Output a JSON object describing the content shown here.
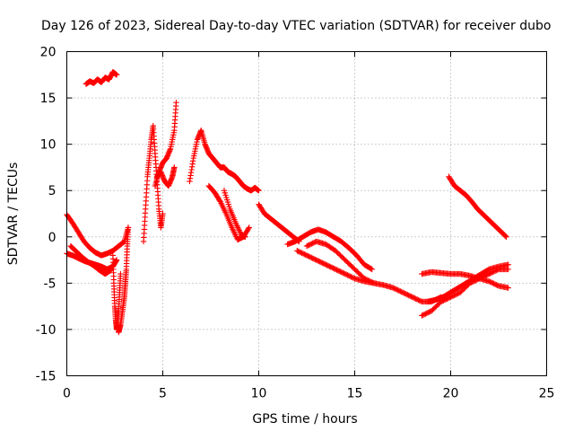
{
  "chart_data": {
    "type": "scatter",
    "title": "Day 126 of 2023, Sidereal Day-to-day VTEC variation (SDTVAR) for receiver dubo",
    "xlabel": "GPS time / hours",
    "ylabel": "SDTVAR / TECUs",
    "xlim": [
      0,
      25
    ],
    "ylim": [
      -15,
      20
    ],
    "xticks": [
      0,
      5,
      10,
      15,
      20,
      25
    ],
    "xtick_labels": [
      "0",
      "5",
      "10",
      "15",
      "20",
      "25"
    ],
    "yticks": [
      -15,
      -10,
      -5,
      0,
      5,
      10,
      15,
      20
    ],
    "ytick_labels": [
      "-15",
      "-10",
      "-5",
      "0",
      "5",
      "10",
      "15",
      "20"
    ],
    "grid": true,
    "marker": "+",
    "color": "#ff0000",
    "series": [
      {
        "name": "s1",
        "x": [
          0.0,
          0.3,
          0.6,
          0.9,
          1.2,
          1.5,
          1.8,
          2.1,
          2.4,
          2.7,
          3.0,
          3.2
        ],
        "y": [
          2.4,
          1.5,
          0.5,
          -0.5,
          -1.2,
          -1.7,
          -2.0,
          -1.8,
          -1.5,
          -1.0,
          -0.5,
          1.0
        ]
      },
      {
        "name": "s2",
        "x": [
          0.0,
          0.3,
          0.6,
          0.9,
          1.2,
          1.5,
          1.8,
          2.1,
          2.4,
          2.6
        ],
        "y": [
          -1.8,
          -2.0,
          -2.3,
          -2.6,
          -2.8,
          -3.0,
          -3.2,
          -3.5,
          -3.2,
          -2.5
        ]
      },
      {
        "name": "s3",
        "x": [
          0.2,
          0.5,
          0.8,
          1.1,
          1.4,
          1.7,
          2.0,
          2.3
        ],
        "y": [
          -1.0,
          -1.6,
          -2.2,
          -2.7,
          -3.1,
          -3.6,
          -4.0,
          -3.6
        ]
      },
      {
        "name": "s4",
        "x": [
          1.0,
          1.2,
          1.4,
          1.6,
          1.8,
          2.0,
          2.2,
          2.4,
          2.6
        ],
        "y": [
          16.5,
          16.8,
          16.6,
          17.0,
          16.7,
          17.2,
          17.0,
          17.8,
          17.5
        ]
      },
      {
        "name": "s5",
        "x": [
          2.4,
          2.45,
          2.5,
          2.55,
          2.6,
          2.65,
          2.7,
          2.75,
          2.8
        ],
        "y": [
          -2.0,
          -5.0,
          -7.5,
          -9.0,
          -10.0,
          -9.5,
          -8.0,
          -6.0,
          -4.0
        ]
      },
      {
        "name": "s6",
        "x": [
          2.7,
          2.8,
          2.9,
          3.0,
          3.05,
          3.1,
          3.15,
          3.2
        ],
        "y": [
          -10.3,
          -9.5,
          -8.0,
          -6.5,
          -5.0,
          -3.5,
          -1.0,
          1.0
        ]
      },
      {
        "name": "s7",
        "x": [
          4.0,
          4.1,
          4.2,
          4.3,
          4.4,
          4.5,
          4.6,
          4.7,
          4.8,
          4.9,
          5.0
        ],
        "y": [
          -0.5,
          3.0,
          6.5,
          8.5,
          10.5,
          12.0,
          9.0,
          6.0,
          3.0,
          1.0,
          2.5
        ]
      },
      {
        "name": "s8",
        "x": [
          4.6,
          4.8,
          5.0,
          5.2,
          5.4,
          5.6,
          5.7
        ],
        "y": [
          5.5,
          7.0,
          8.0,
          8.5,
          9.5,
          11.5,
          14.5
        ]
      },
      {
        "name": "s9",
        "x": [
          4.7,
          4.9,
          5.1,
          5.3,
          5.5,
          5.6
        ],
        "y": [
          6.5,
          7.0,
          6.0,
          5.5,
          6.5,
          7.5
        ]
      },
      {
        "name": "s10",
        "x": [
          6.4,
          6.6,
          6.8,
          7.0,
          7.2,
          7.4,
          7.6,
          7.8,
          8.0,
          8.2,
          8.4,
          8.6,
          8.8,
          9.0,
          9.2,
          9.4,
          9.6,
          9.8,
          10.0
        ],
        "y": [
          6.0,
          8.5,
          10.5,
          11.5,
          10.0,
          9.0,
          8.5,
          8.0,
          7.5,
          7.5,
          7.0,
          6.8,
          6.5,
          6.0,
          5.5,
          5.2,
          5.0,
          5.3,
          5.0
        ]
      },
      {
        "name": "s11",
        "x": [
          7.4,
          7.7,
          8.0,
          8.3,
          8.6,
          8.9,
          9.2,
          9.5
        ],
        "y": [
          5.5,
          4.8,
          3.8,
          2.5,
          1.0,
          -0.3,
          0.0,
          1.0
        ]
      },
      {
        "name": "s12",
        "x": [
          8.2,
          8.5,
          8.8,
          9.1,
          9.3
        ],
        "y": [
          5.0,
          3.0,
          1.5,
          0.2,
          0.0
        ]
      },
      {
        "name": "s13",
        "x": [
          10.0,
          10.3,
          10.6,
          10.9,
          11.2,
          11.5,
          11.8,
          12.1
        ],
        "y": [
          3.5,
          2.5,
          2.0,
          1.5,
          1.0,
          0.5,
          0.0,
          -0.5
        ]
      },
      {
        "name": "s14",
        "x": [
          11.5,
          11.9,
          12.3,
          12.7,
          13.1,
          13.5,
          13.9,
          14.3,
          14.7,
          15.1,
          15.5,
          15.9
        ],
        "y": [
          -0.8,
          -0.5,
          0.0,
          0.5,
          0.8,
          0.5,
          0.0,
          -0.5,
          -1.2,
          -2.0,
          -3.0,
          -3.5
        ]
      },
      {
        "name": "s15",
        "x": [
          12.5,
          13.0,
          13.5,
          14.0,
          14.5,
          15.0,
          15.5,
          16.0
        ],
        "y": [
          -1.0,
          -0.5,
          -0.8,
          -1.5,
          -2.5,
          -3.5,
          -4.5,
          -5.0
        ]
      },
      {
        "name": "s16",
        "x": [
          12.0,
          12.5,
          13.0,
          13.5,
          14.0,
          14.5,
          15.0,
          15.5,
          16.0,
          16.5,
          17.0,
          17.5,
          18.0,
          18.5,
          19.0,
          19.5
        ],
        "y": [
          -1.5,
          -2.0,
          -2.5,
          -3.0,
          -3.5,
          -4.0,
          -4.5,
          -4.8,
          -5.0,
          -5.2,
          -5.5,
          -6.0,
          -6.5,
          -7.0,
          -7.0,
          -6.5
        ]
      },
      {
        "name": "s17",
        "x": [
          18.5,
          19.0,
          19.5,
          20.0,
          20.5,
          21.0,
          21.5,
          22.0,
          22.5,
          23.0
        ],
        "y": [
          -4.0,
          -3.8,
          -3.9,
          -4.0,
          -4.0,
          -4.2,
          -4.5,
          -4.8,
          -5.3,
          -5.5
        ]
      },
      {
        "name": "s18",
        "x": [
          18.5,
          19.0,
          19.5,
          20.0,
          20.5,
          21.0,
          21.5,
          22.0,
          22.5,
          23.0
        ],
        "y": [
          -8.5,
          -8.0,
          -7.0,
          -6.5,
          -6.0,
          -5.0,
          -4.5,
          -4.0,
          -3.5,
          -3.5
        ]
      },
      {
        "name": "s19",
        "x": [
          18.8,
          19.2,
          19.6,
          20.0,
          20.4,
          20.8,
          21.2,
          21.6,
          22.0,
          22.5,
          23.0
        ],
        "y": [
          -7.0,
          -6.8,
          -6.5,
          -6.0,
          -5.5,
          -5.0,
          -4.5,
          -4.0,
          -3.5,
          -3.2,
          -3.0
        ]
      },
      {
        "name": "s20",
        "x": [
          19.9,
          20.2,
          20.5,
          20.8,
          21.1,
          21.4,
          21.7,
          22.0,
          22.3,
          22.6,
          22.9
        ],
        "y": [
          6.5,
          5.5,
          5.0,
          4.5,
          3.8,
          3.0,
          2.4,
          1.8,
          1.2,
          0.6,
          0.0
        ]
      }
    ]
  }
}
